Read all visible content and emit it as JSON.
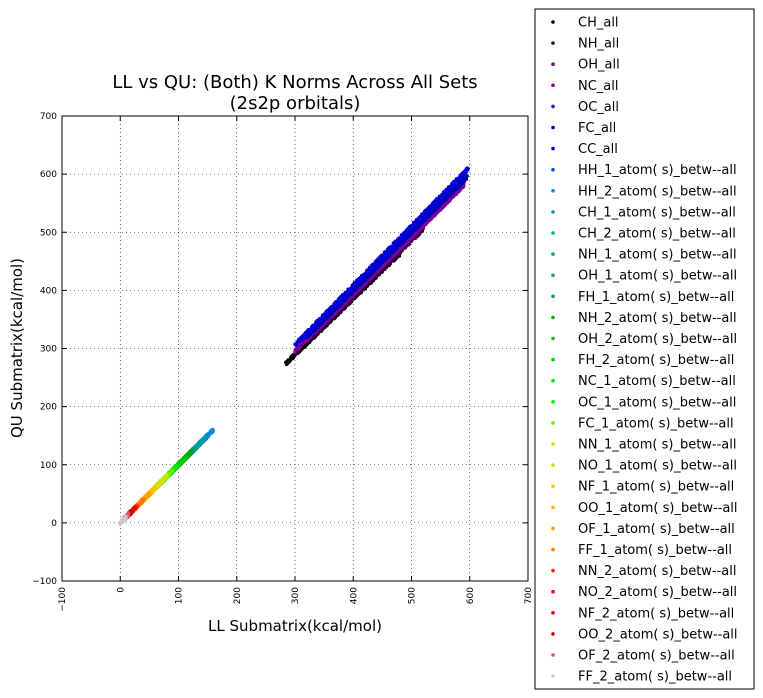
{
  "chart_data": {
    "type": "scatter",
    "title": "LL vs QU: (Both) K Norms Across All Sets",
    "subtitle": "(2s2p orbitals)",
    "xlabel": "LL Submatrix(kcal/mol)",
    "ylabel": "QU Submatrix(kcal/mol)",
    "xlim": [
      -100,
      700
    ],
    "ylim": [
      -100,
      700
    ],
    "xticks": [
      -100,
      0,
      100,
      200,
      300,
      400,
      500,
      600,
      700
    ],
    "yticks": [
      -100,
      0,
      100,
      200,
      300,
      400,
      500,
      600,
      700
    ],
    "xtick_labels": [
      "−100",
      "0",
      "100",
      "200",
      "300",
      "400",
      "500",
      "600",
      "700"
    ],
    "ytick_labels": [
      "−100",
      "0",
      "100",
      "200",
      "300",
      "400",
      "500",
      "600",
      "700"
    ],
    "grid": true,
    "legend_position": "outside-right",
    "series": [
      {
        "name": "CH_all",
        "color": "#000000",
        "range": [
          285,
          480
        ],
        "slope": 0.965,
        "offset": 0
      },
      {
        "name": "NH_all",
        "color": "#3a0048",
        "range": [
          330,
          520
        ],
        "slope": 0.972,
        "offset": 0
      },
      {
        "name": "OH_all",
        "color": "#6e0090",
        "range": [
          360,
          590
        ],
        "slope": 0.985,
        "offset": 0
      },
      {
        "name": "NC_all",
        "color": "#7a0098",
        "range": [
          300,
          580
        ],
        "slope": 0.985,
        "offset": 0
      },
      {
        "name": "OC_all",
        "color": "#4c00b4",
        "range": [
          320,
          595
        ],
        "slope": 1.0,
        "offset": 0
      },
      {
        "name": "FC_all",
        "color": "#0000b8",
        "range": [
          320,
          595
        ],
        "slope": 1.0,
        "offset": 0
      },
      {
        "name": "CC_all",
        "color": "#0000dd",
        "range": [
          300,
          597
        ],
        "slope": 1.02,
        "offset": 0
      },
      {
        "name": "HH_1_atom( s)_betw--all",
        "color": "#0055dd",
        "range": [
          120,
          150
        ],
        "slope": 1.0,
        "offset": 0
      },
      {
        "name": "HH_2_atom( s)_betw--all",
        "color": "#0088dd",
        "range": [
          120,
          160
        ],
        "slope": 1.0,
        "offset": 0
      },
      {
        "name": "CH_1_atom( s)_betw--all",
        "color": "#0099bb",
        "range": [
          100,
          145
        ],
        "slope": 1.0,
        "offset": 0
      },
      {
        "name": "CH_2_atom( s)_betw--all",
        "color": "#00a0aa",
        "range": [
          95,
          140
        ],
        "slope": 1.0,
        "offset": 0
      },
      {
        "name": "NH_1_atom( s)_betw--all",
        "color": "#00a099",
        "range": [
          90,
          135
        ],
        "slope": 1.0,
        "offset": 0
      },
      {
        "name": "OH_1_atom( s)_betw--all",
        "color": "#00a088",
        "range": [
          85,
          130
        ],
        "slope": 1.0,
        "offset": 0
      },
      {
        "name": "FH_1_atom( s)_betw--all",
        "color": "#00996a",
        "range": [
          80,
          125
        ],
        "slope": 1.0,
        "offset": 0
      },
      {
        "name": "NH_2_atom( s)_betw--all",
        "color": "#00aa00",
        "range": [
          75,
          120
        ],
        "slope": 1.0,
        "offset": 0
      },
      {
        "name": "OH_2_atom( s)_betw--all",
        "color": "#00bb00",
        "range": [
          70,
          115
        ],
        "slope": 1.0,
        "offset": 0
      },
      {
        "name": "FH_2_atom( s)_betw--all",
        "color": "#00cc00",
        "range": [
          65,
          110
        ],
        "slope": 1.0,
        "offset": 0
      },
      {
        "name": "NC_1_atom( s)_betw--all",
        "color": "#00dd00",
        "range": [
          60,
          100
        ],
        "slope": 1.0,
        "offset": 0
      },
      {
        "name": "OC_1_atom( s)_betw--all",
        "color": "#00ee00",
        "range": [
          50,
          95
        ],
        "slope": 1.0,
        "offset": 0
      },
      {
        "name": "FC_1_atom( s)_betw--all",
        "color": "#66ee00",
        "range": [
          45,
          90
        ],
        "slope": 1.0,
        "offset": 0
      },
      {
        "name": "NN_1_atom( s)_betw--all",
        "color": "#bbee00",
        "range": [
          40,
          80
        ],
        "slope": 1.0,
        "offset": 0
      },
      {
        "name": "NO_1_atom( s)_betw--all",
        "color": "#dddd00",
        "range": [
          35,
          70
        ],
        "slope": 1.0,
        "offset": 0
      },
      {
        "name": "NF_1_atom( s)_betw--all",
        "color": "#eecc00",
        "range": [
          30,
          60
        ],
        "slope": 1.0,
        "offset": 0
      },
      {
        "name": "OO_1_atom( s)_betw--all",
        "color": "#ffbb00",
        "range": [
          25,
          55
        ],
        "slope": 1.0,
        "offset": 0
      },
      {
        "name": "OF_1_atom( s)_betw--all",
        "color": "#ffa000",
        "range": [
          20,
          50
        ],
        "slope": 1.0,
        "offset": 0
      },
      {
        "name": "FF_1_atom( s)_betw--all",
        "color": "#ff7700",
        "range": [
          15,
          40
        ],
        "slope": 1.0,
        "offset": 0
      },
      {
        "name": "NN_2_atom( s)_betw--all",
        "color": "#ff2200",
        "range": [
          10,
          30
        ],
        "slope": 1.0,
        "offset": 0
      },
      {
        "name": "NO_2_atom( s)_betw--all",
        "color": "#ee0000",
        "range": [
          8,
          25
        ],
        "slope": 1.0,
        "offset": 0
      },
      {
        "name": "NF_2_atom( s)_betw--all",
        "color": "#dd0000",
        "range": [
          6,
          20
        ],
        "slope": 1.0,
        "offset": 0
      },
      {
        "name": "OO_2_atom( s)_betw--all",
        "color": "#cc0000",
        "range": [
          4,
          18
        ],
        "slope": 1.0,
        "offset": 0
      },
      {
        "name": "OF_2_atom( s)_betw--all",
        "color": "#dd5555",
        "range": [
          3,
          15
        ],
        "slope": 1.0,
        "offset": 0
      },
      {
        "name": "FF_2_atom( s)_betw--all",
        "color": "#cccccc",
        "range": [
          0,
          10
        ],
        "slope": 1.0,
        "offset": 0
      }
    ]
  }
}
